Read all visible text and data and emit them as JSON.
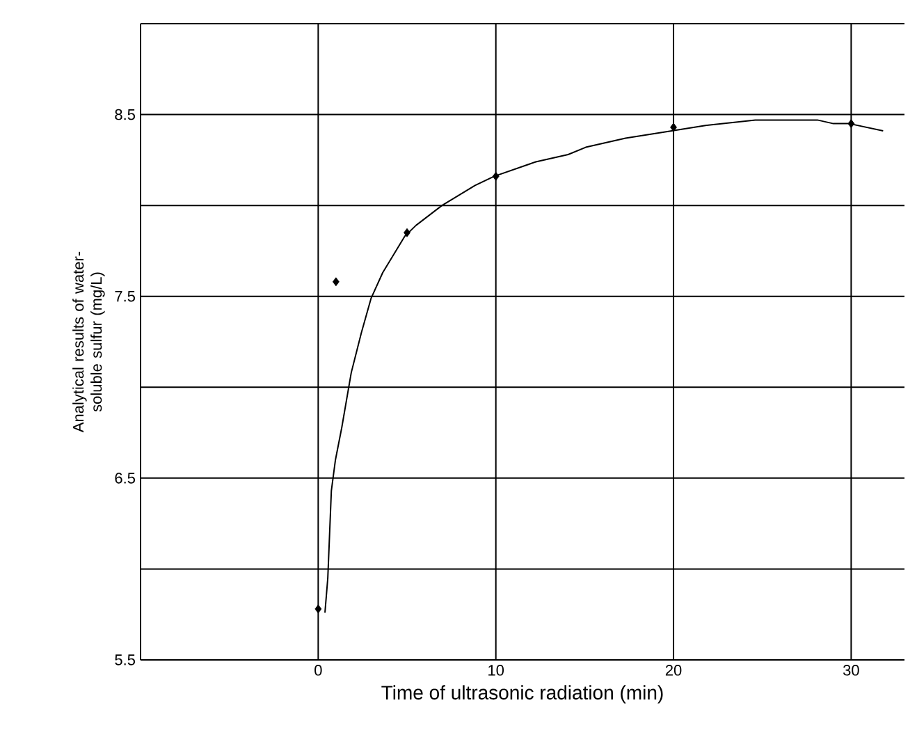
{
  "chart_data": {
    "type": "scatter",
    "xlabel": "Time of ultrasonic radiation (min)",
    "ylabel": "Analytical results of water-soluble sulfur (mg/L)",
    "xlim": [
      -10,
      33
    ],
    "ylim": [
      5.5,
      9
    ],
    "xticks": [
      0,
      10,
      20,
      30
    ],
    "yticks": [
      5.5,
      {
        "value": 6,
        "label": null
      },
      6.5,
      {
        "value": 7,
        "label": null
      },
      7.5,
      {
        "value": 8,
        "label": null
      },
      8.5,
      {
        "value": 9,
        "label": null
      }
    ],
    "grid": true,
    "series": [
      {
        "color": "#000000",
        "marker": "diamond",
        "x": [
          0,
          1,
          5,
          10,
          20,
          30
        ],
        "values": [
          5.78,
          7.58,
          7.85,
          8.16,
          8.43,
          8.45
        ]
      },
      {
        "type": "line",
        "color": "#000000",
        "marker": "none",
        "line_style": "solid",
        "x": [
          0.38,
          0.54,
          0.74,
          0.97,
          1.33,
          1.86,
          2.43,
          2.98,
          3.63,
          4.87,
          5.5,
          6.97,
          8.83,
          9.9,
          12.25,
          14.07,
          15.06,
          17.3,
          19.9,
          21.8,
          24.6,
          28.1,
          29.0,
          29.9,
          31.8
        ],
        "values": [
          5.76,
          5.95,
          6.43,
          6.6,
          6.78,
          7.08,
          7.3,
          7.49,
          7.63,
          7.83,
          7.89,
          8.0,
          8.11,
          8.16,
          8.24,
          8.28,
          8.32,
          8.37,
          8.41,
          8.44,
          8.47,
          8.47,
          8.45,
          8.45,
          8.41
        ]
      }
    ]
  }
}
